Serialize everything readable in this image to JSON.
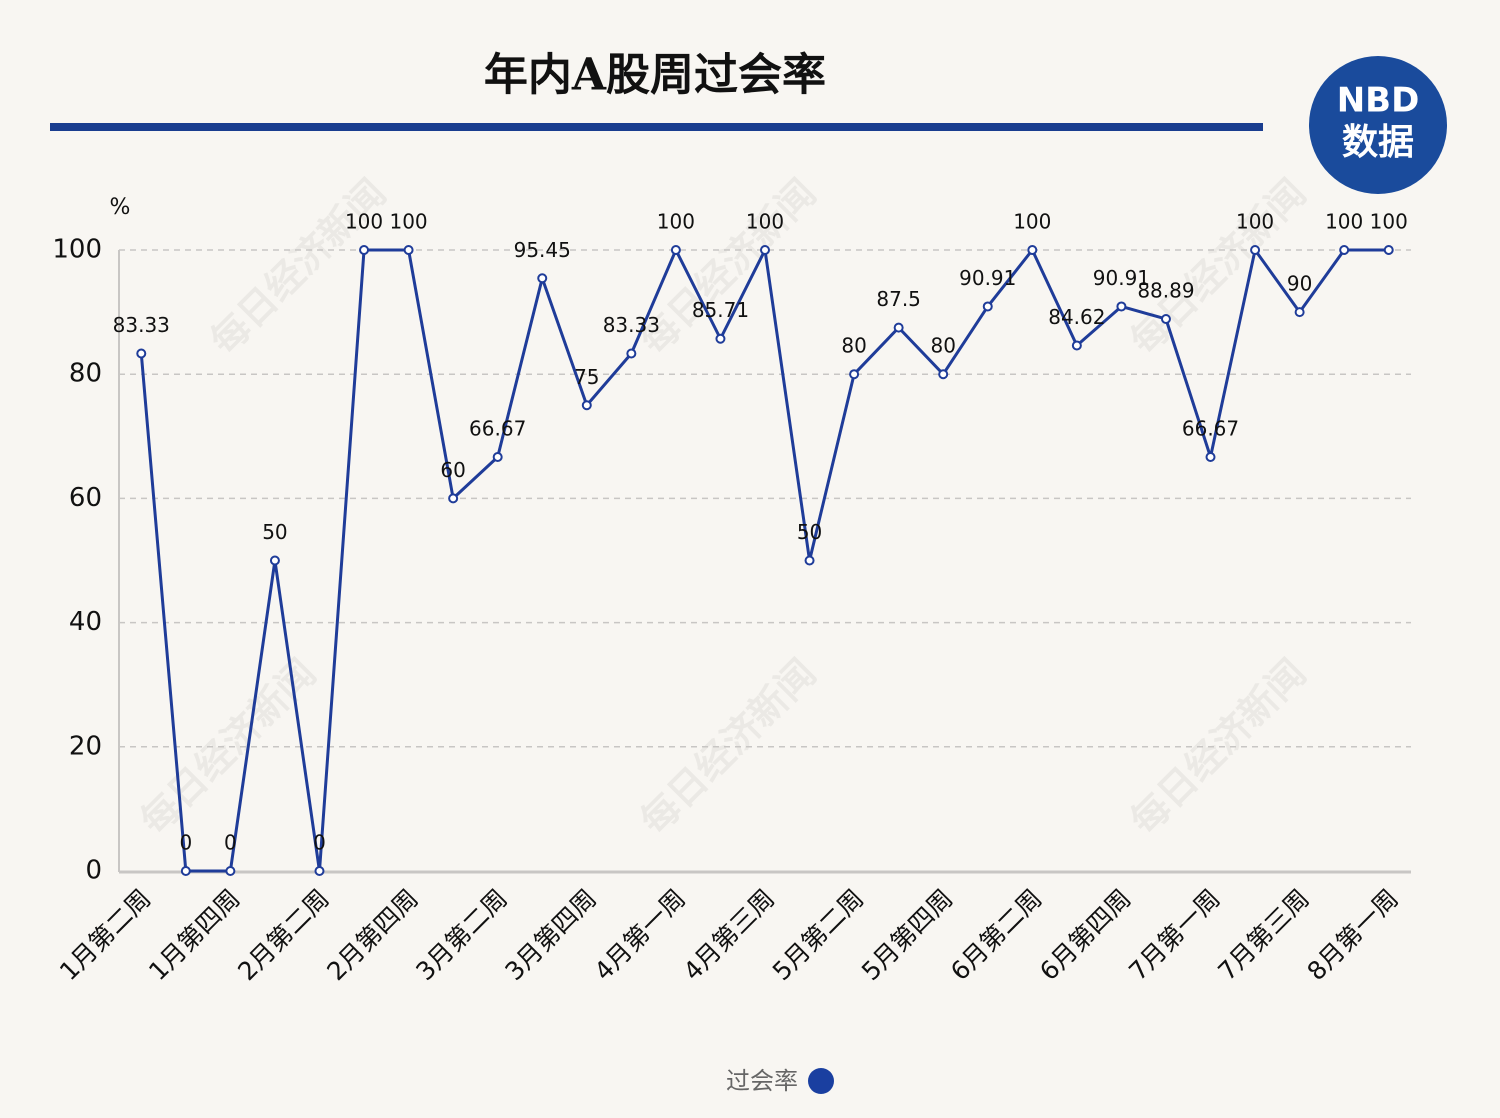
{
  "chart_data": {
    "type": "line",
    "title": "年内A股周过会率",
    "y_unit": "%",
    "logo": {
      "top": "NBD",
      "bottom": "数据"
    },
    "watermark": "每日经济新闻",
    "categories": [
      "1月第二周",
      null,
      "1月第四周",
      null,
      "2月第二周",
      null,
      "2月第四周",
      null,
      "3月第二周",
      null,
      "3月第四周",
      null,
      "4月第一周",
      null,
      "4月第三周",
      null,
      "5月第二周",
      null,
      "5月第四周",
      null,
      "6月第二周",
      null,
      "6月第四周",
      null,
      "7月第一周",
      null,
      "7月第三周",
      null,
      "8月第一周"
    ],
    "series": [
      {
        "name": "过会率",
        "color": "#1f3c99",
        "values": [
          83.33,
          0,
          0,
          50,
          0,
          100,
          100,
          60,
          66.67,
          95.45,
          75,
          83.33,
          100,
          85.71,
          100,
          50,
          80,
          87.5,
          80,
          90.91,
          100,
          84.62,
          90.91,
          88.89,
          66.67,
          100,
          90,
          100,
          100
        ]
      }
    ],
    "ylim": [
      0,
      100
    ],
    "yticks": [
      0,
      20,
      40,
      60,
      80,
      100
    ],
    "grid": true,
    "legend": "bottom"
  }
}
